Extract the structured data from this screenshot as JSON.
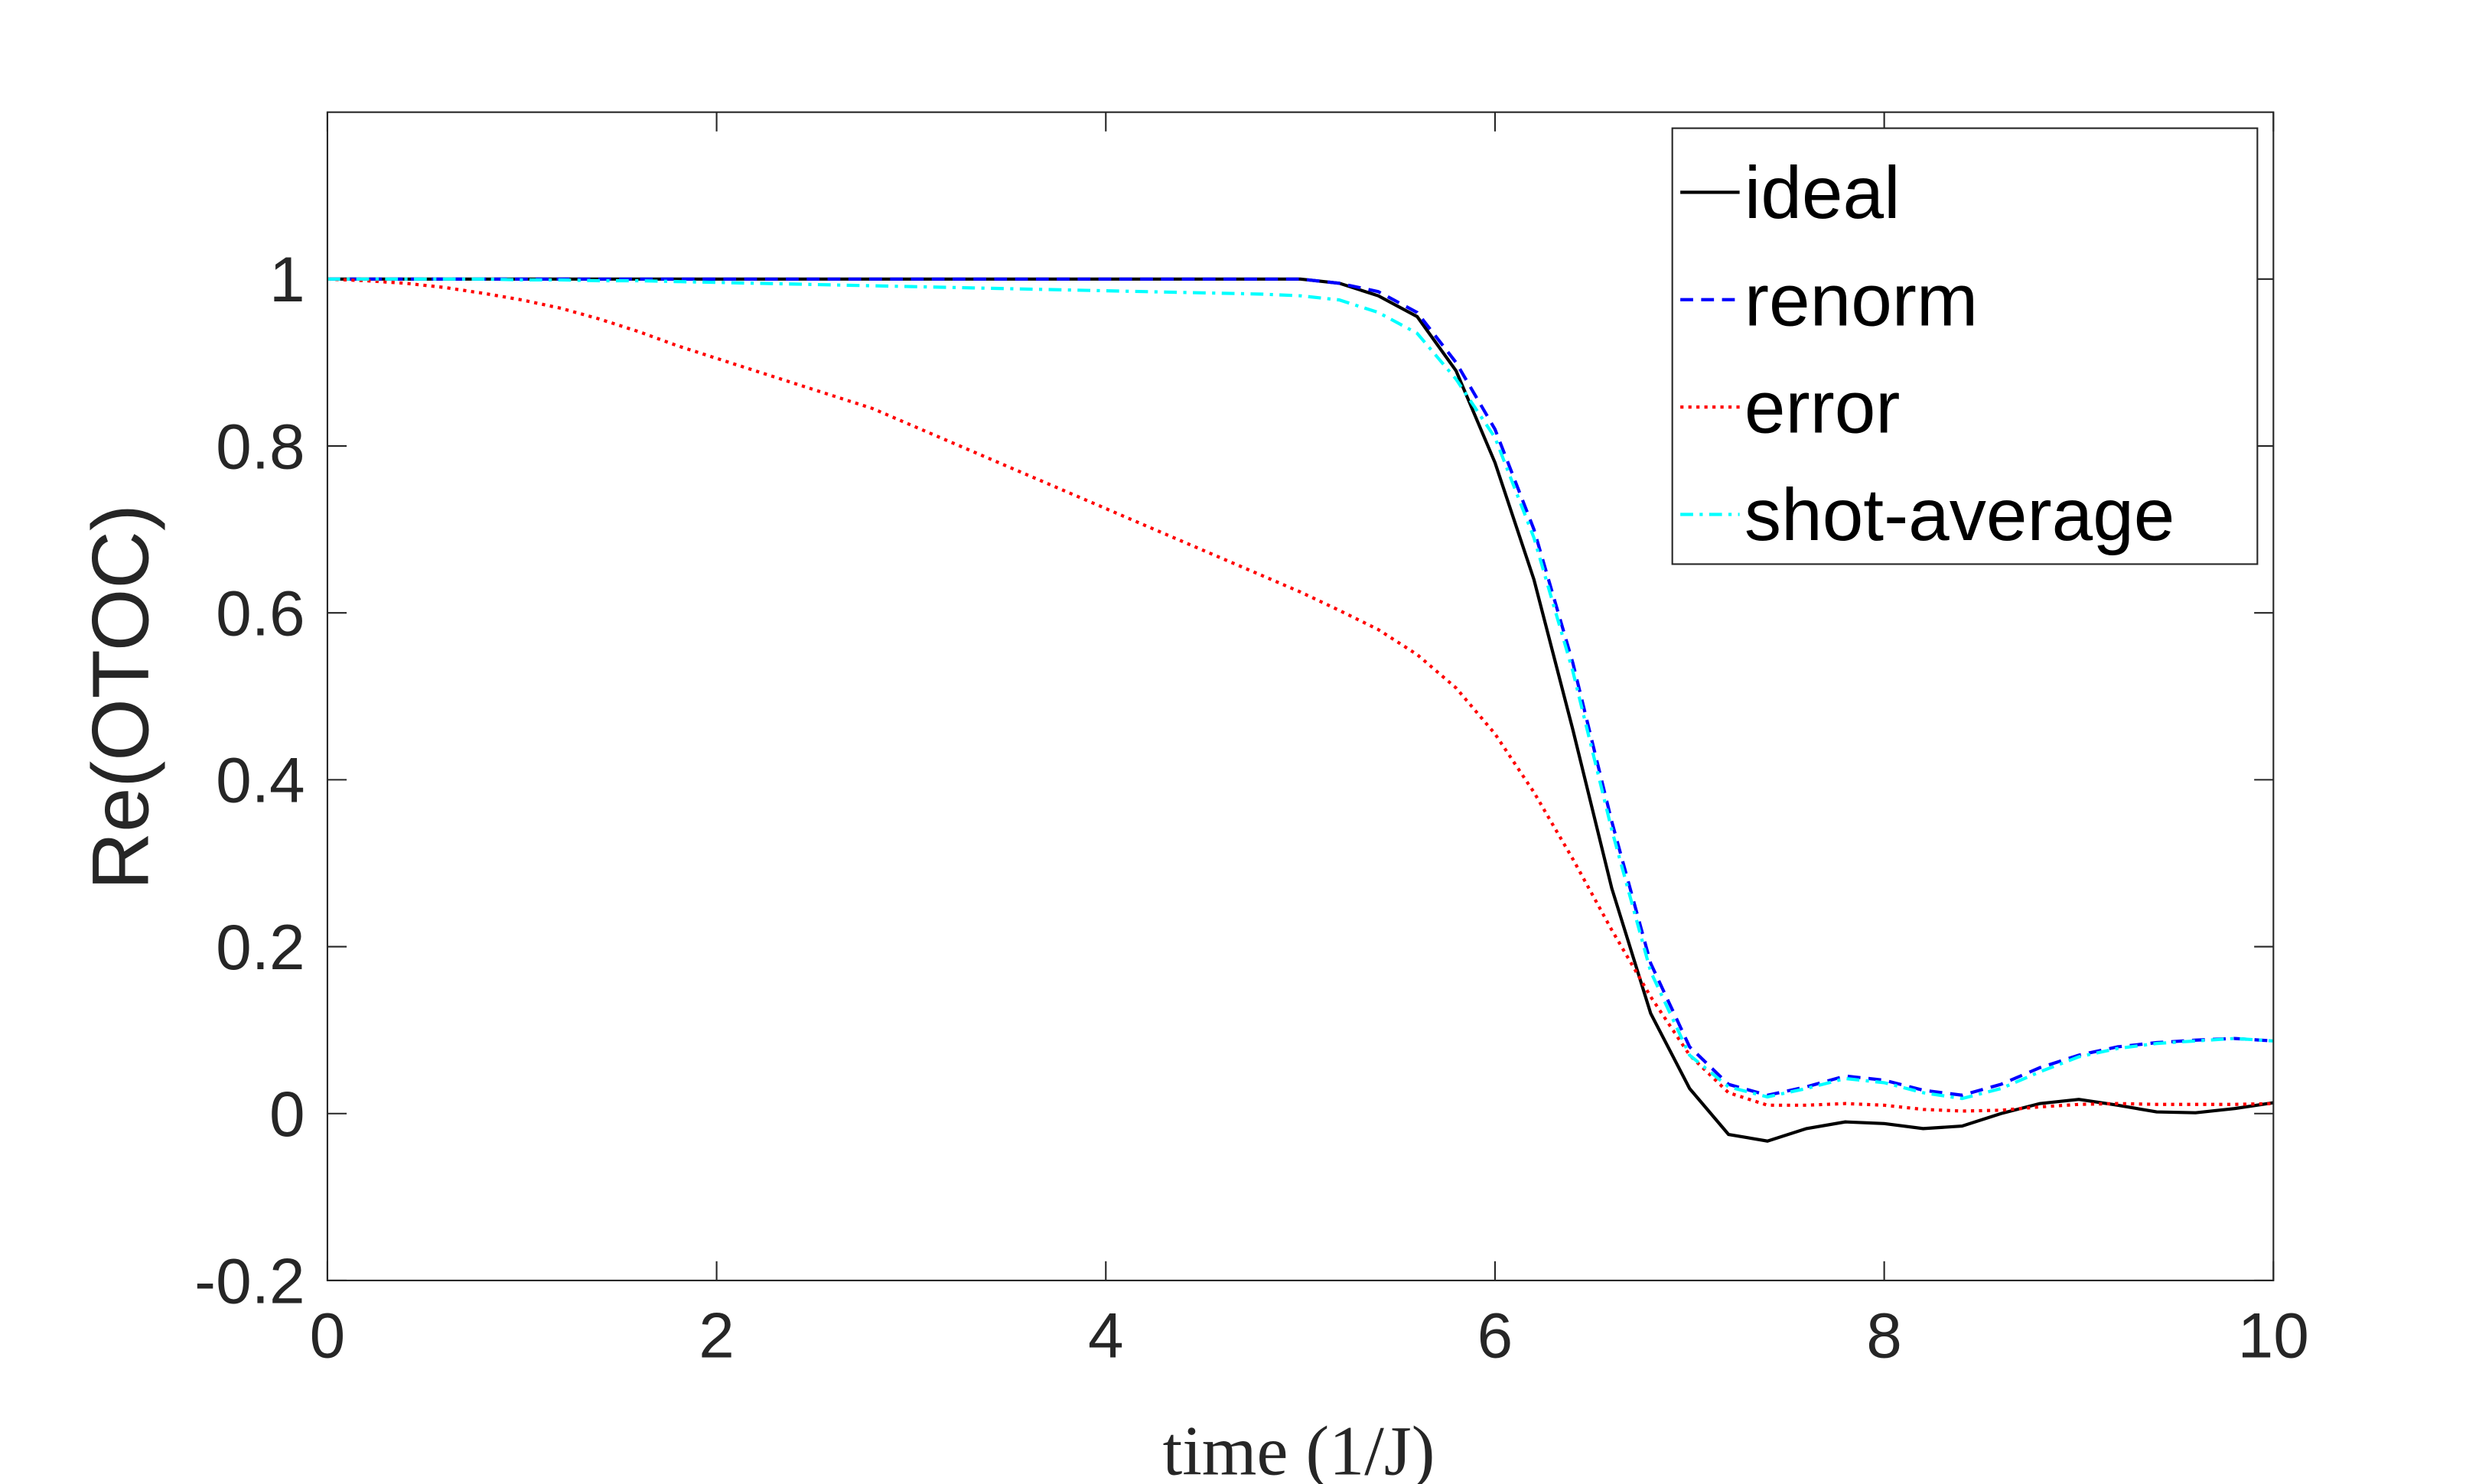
{
  "chart_data": {
    "type": "line",
    "xlabel": "time (1/J)",
    "ylabel": "Re(OTOC)",
    "x": [
      0,
      0.2,
      0.4,
      0.6,
      0.8,
      1,
      1.2,
      1.4,
      1.6,
      1.8,
      2,
      2.2,
      2.4,
      2.6,
      2.8,
      3,
      3.2,
      3.4,
      3.6,
      3.8,
      4,
      4.2,
      4.4,
      4.6,
      4.8,
      5,
      5.2,
      5.4,
      5.6,
      5.8,
      6,
      6.2,
      6.4,
      6.6,
      6.8,
      7,
      7.2,
      7.4,
      7.6,
      7.8,
      8,
      8.2,
      8.4,
      8.6,
      8.8,
      9,
      9.2,
      9.4,
      9.6,
      9.8,
      10
    ],
    "series": [
      {
        "name": "ideal",
        "color": "#000000",
        "dash": "solid",
        "values": [
          1,
          1,
          1,
          1,
          1,
          1,
          1,
          1,
          1,
          1,
          1,
          1,
          1,
          1,
          1,
          1,
          1,
          1,
          1,
          1,
          1,
          1,
          1,
          1,
          1,
          1,
          0.995,
          0.98,
          0.955,
          0.89,
          0.78,
          0.64,
          0.46,
          0.27,
          0.12,
          0.03,
          -0.025,
          -0.033,
          -0.018,
          -0.01,
          -0.012,
          -0.018,
          -0.015,
          0.0,
          0.012,
          0.017,
          0.01,
          0.002,
          0.001,
          0.006,
          0.013
        ]
      },
      {
        "name": "renorm",
        "color": "#0000ff",
        "dash": "dashed",
        "values": [
          1,
          1,
          1,
          1,
          1,
          1,
          1,
          1,
          1,
          1,
          1,
          1,
          1,
          1,
          1,
          1,
          1,
          1,
          1,
          1,
          1,
          1,
          1,
          1,
          1,
          1,
          0.995,
          0.985,
          0.96,
          0.9,
          0.82,
          0.7,
          0.54,
          0.35,
          0.18,
          0.08,
          0.035,
          0.022,
          0.032,
          0.045,
          0.04,
          0.028,
          0.022,
          0.035,
          0.055,
          0.07,
          0.08,
          0.085,
          0.088,
          0.09,
          0.087
        ]
      },
      {
        "name": "error",
        "color": "#ff0000",
        "dash": "dotted",
        "values": [
          1,
          0.998,
          0.995,
          0.99,
          0.983,
          0.975,
          0.965,
          0.952,
          0.937,
          0.92,
          0.905,
          0.89,
          0.875,
          0.86,
          0.845,
          0.825,
          0.805,
          0.785,
          0.765,
          0.745,
          0.725,
          0.705,
          0.685,
          0.665,
          0.645,
          0.625,
          0.603,
          0.58,
          0.55,
          0.51,
          0.455,
          0.385,
          0.305,
          0.22,
          0.14,
          0.07,
          0.025,
          0.01,
          0.01,
          0.012,
          0.01,
          0.005,
          0.003,
          0.004,
          0.008,
          0.011,
          0.012,
          0.011,
          0.011,
          0.011,
          0.012
        ]
      },
      {
        "name": "shot-average",
        "color": "#00ffff",
        "dash": "dashdot",
        "values": [
          1,
          1,
          1,
          1,
          1,
          0.999,
          0.999,
          0.998,
          0.998,
          0.997,
          0.996,
          0.995,
          0.994,
          0.993,
          0.992,
          0.991,
          0.99,
          0.989,
          0.988,
          0.987,
          0.986,
          0.985,
          0.984,
          0.983,
          0.982,
          0.98,
          0.975,
          0.96,
          0.935,
          0.88,
          0.81,
          0.69,
          0.53,
          0.34,
          0.17,
          0.07,
          0.032,
          0.02,
          0.03,
          0.042,
          0.037,
          0.025,
          0.018,
          0.03,
          0.05,
          0.068,
          0.078,
          0.084,
          0.087,
          0.09,
          0.087
        ]
      }
    ],
    "xlim": [
      0,
      10
    ],
    "xticks": [
      0,
      2,
      4,
      6,
      8,
      10
    ],
    "ylim": [
      -0.2,
      1.2
    ],
    "yticks": [
      -0.2,
      0,
      0.2,
      0.4,
      0.6,
      0.8,
      1
    ],
    "legend": "northeast"
  }
}
